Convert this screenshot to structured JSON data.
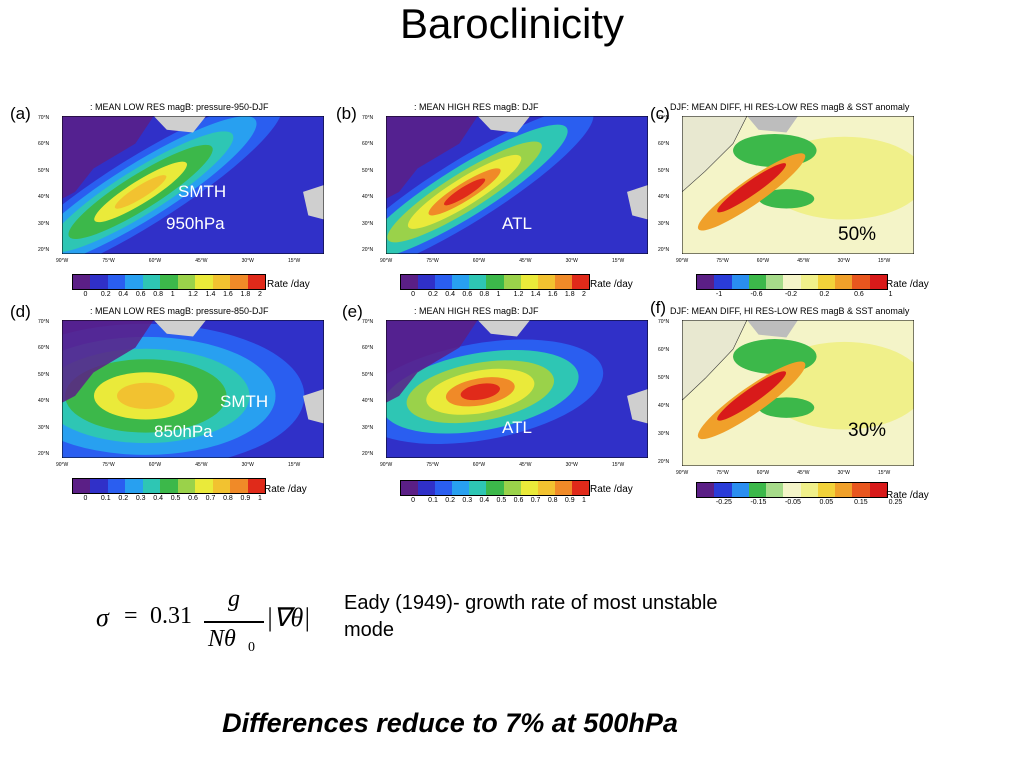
{
  "title": "Baroclinicity",
  "panels": [
    {
      "label": "(a)",
      "title": ": MEAN LOW RES magB: pressure-950-DJF",
      "overlay1": "SMTH",
      "overlay2": "950hPa",
      "ticks": [
        "0",
        "0.2",
        "0.4",
        "0.6",
        "0.8",
        "1",
        "1.2",
        "1.4",
        "1.6",
        "1.8",
        "2"
      ],
      "units": "Rate /day"
    },
    {
      "label": "(b)",
      "title": ": MEAN HIGH RES magB: DJF",
      "overlay1": "ATL",
      "overlay2": "",
      "ticks": [
        "0",
        "0.2",
        "0.4",
        "0.6",
        "0.8",
        "1",
        "1.2",
        "1.4",
        "1.6",
        "1.8",
        "2"
      ],
      "units": "Rate /day"
    },
    {
      "label": "(c)",
      "title": "DJF: MEAN DIFF, HI RES-LOW RES magB & SST anomaly",
      "overlay1": "50%",
      "overlay2": "",
      "ticks": [
        "-1",
        "-0.6",
        "-0.2",
        "0.2",
        "0.6",
        "1"
      ],
      "units": "Rate /day"
    },
    {
      "label": "(d)",
      "title": ": MEAN LOW RES magB: pressure-850-DJF",
      "overlay1": "SMTH",
      "overlay2": "850hPa",
      "ticks": [
        "0",
        "0.1",
        "0.2",
        "0.3",
        "0.4",
        "0.5",
        "0.6",
        "0.7",
        "0.8",
        "0.9",
        "1"
      ],
      "units": "Rate /day"
    },
    {
      "label": "(e)",
      "title": ": MEAN HIGH RES magB: DJF",
      "overlay1": "ATL",
      "overlay2": "",
      "ticks": [
        "0",
        "0.1",
        "0.2",
        "0.3",
        "0.4",
        "0.5",
        "0.6",
        "0.7",
        "0.8",
        "0.9",
        "1"
      ],
      "units": "Rate /day"
    },
    {
      "label": "(f)",
      "title": "DJF: MEAN DIFF, HI RES-LOW RES magB & SST anomaly",
      "overlay1": "30%",
      "overlay2": "",
      "ticks": [
        "-0.25",
        "-0.15",
        "-0.05",
        "0.05",
        "0.15",
        "0.25"
      ],
      "units": "Rate /day"
    }
  ],
  "lat_labels": [
    "70°N",
    "60°N",
    "50°N",
    "40°N",
    "30°N",
    "20°N"
  ],
  "lon_labels": [
    "90°W",
    "75°W",
    "60°W",
    "45°W",
    "30°W",
    "15°W"
  ],
  "equation": {
    "sigma": "σ",
    "equals": "=",
    "coef": "0.31",
    "num": "g",
    "den": "Nθ",
    "den_sub": "0",
    "grad": "|∇θ|"
  },
  "description": "Eady (1949)- growth rate of most unstable mode",
  "footer": "Differences reduce to  7% at 500hPa",
  "colors": {
    "seq": [
      "#5b1f86",
      "#3030c8",
      "#2a5ef0",
      "#28a0f0",
      "#2ec6b4",
      "#3cb84a",
      "#9ad24a",
      "#eaea3a",
      "#f2c230",
      "#f08a28",
      "#e02a1a"
    ],
    "div": [
      "#5b1f86",
      "#2a3cd8",
      "#2a8ef0",
      "#3cb84a",
      "#a6db8a",
      "#f4f4c8",
      "#f0f08a",
      "#f2d23a",
      "#f0a02a",
      "#e8561e",
      "#d81a1a"
    ]
  }
}
